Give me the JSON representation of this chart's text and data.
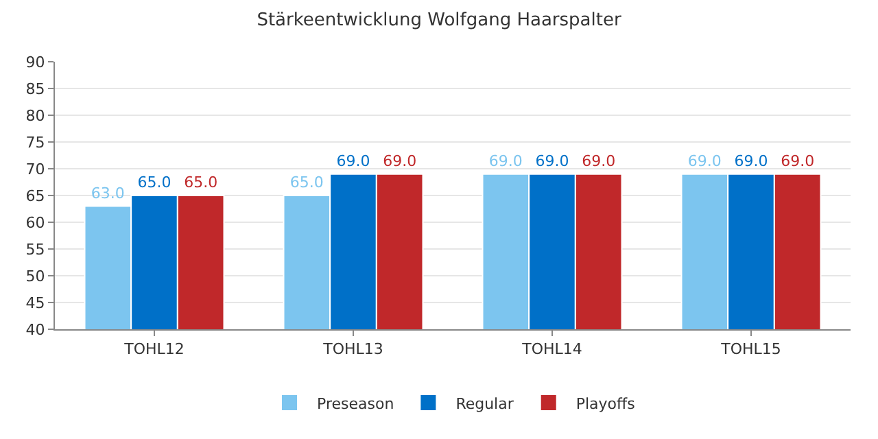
{
  "chart_data": {
    "type": "bar",
    "title": "Stärkeentwicklung Wolfgang Haarspalter",
    "categories": [
      "TOHL12",
      "TOHL13",
      "TOHL14",
      "TOHL15"
    ],
    "series": [
      {
        "name": "Preseason",
        "color": "#7cc5ef",
        "values": [
          63.0,
          65.0,
          69.0,
          69.0
        ],
        "value_labels": [
          "63.0",
          "65.0",
          "69.0",
          "69.0"
        ]
      },
      {
        "name": "Regular",
        "color": "#0070c8",
        "values": [
          65.0,
          69.0,
          69.0,
          69.0
        ],
        "value_labels": [
          "65.0",
          "69.0",
          "69.0",
          "69.0"
        ]
      },
      {
        "name": "Playoffs",
        "color": "#c0282a",
        "values": [
          65.0,
          69.0,
          69.0,
          69.0
        ],
        "value_labels": [
          "65.0",
          "69.0",
          "69.0",
          "69.0"
        ]
      }
    ],
    "ylim": [
      40,
      90
    ],
    "yticks": [
      40,
      45,
      50,
      55,
      60,
      65,
      70,
      75,
      80,
      85,
      90
    ],
    "grid": "y",
    "legend": "bottom"
  }
}
